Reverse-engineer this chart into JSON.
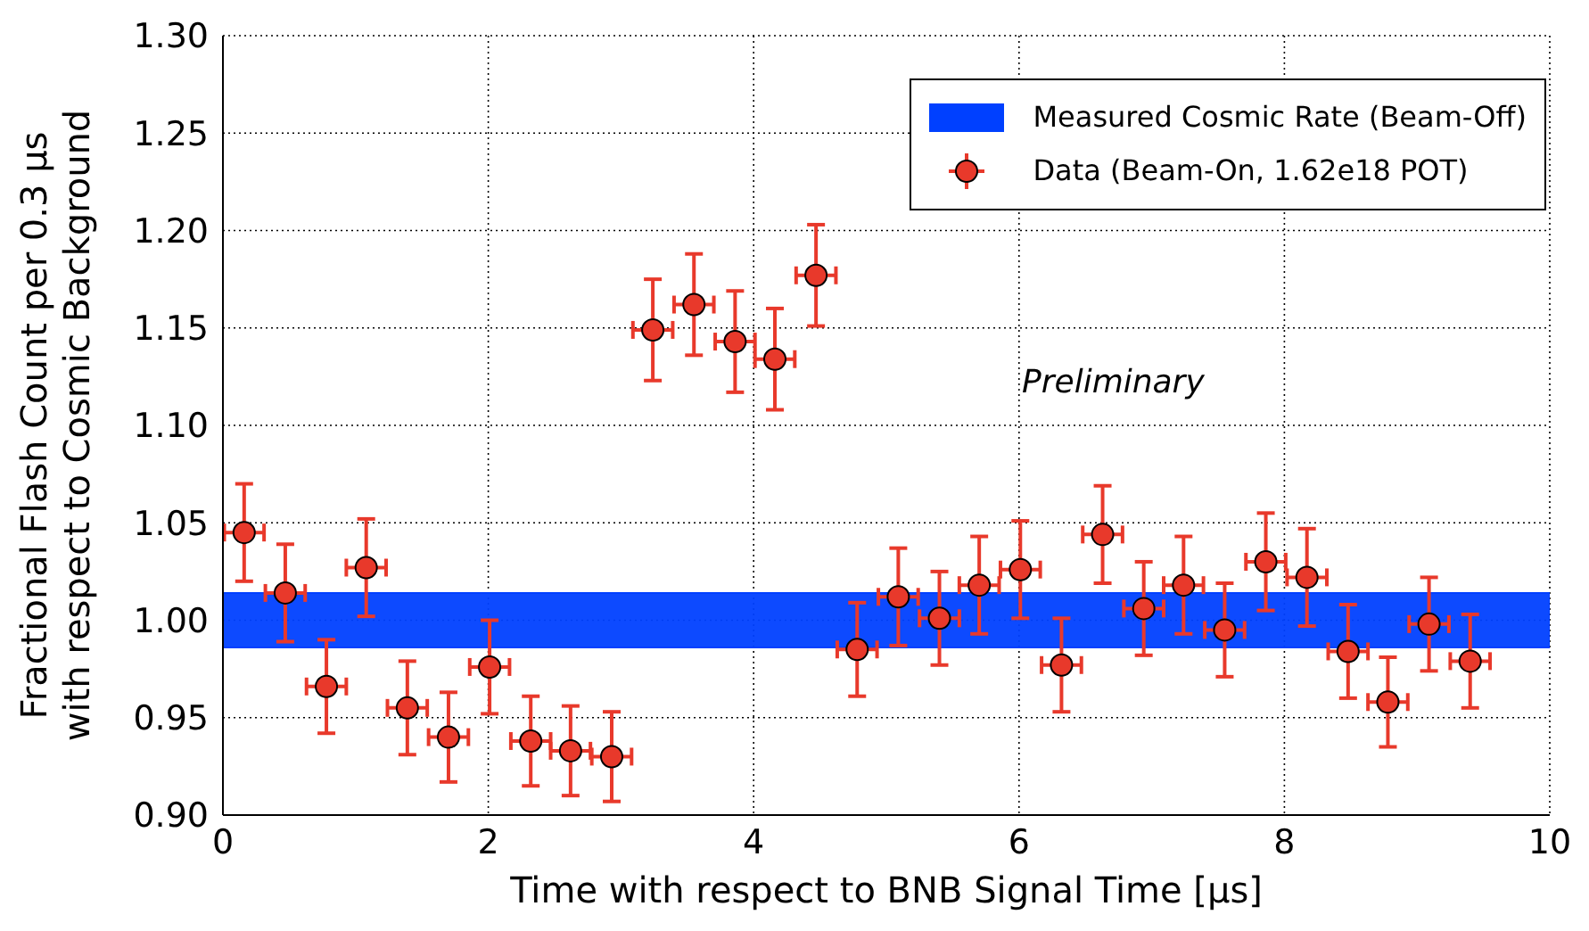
{
  "chart_data": {
    "type": "scatter",
    "xlabel": "Time with respect to BNB Signal Time [μs]",
    "ylabel": "Fractional Flash Count per 0.3 μs\nwith respect to Cosmic Background",
    "xlim": [
      0,
      10
    ],
    "xticks": [
      0,
      2,
      4,
      6,
      8,
      10
    ],
    "ylim": [
      0.9,
      1.3
    ],
    "yticks": [
      {
        "value": 0.9,
        "label": "0.90"
      },
      {
        "value": 0.95,
        "label": "0.95"
      },
      {
        "value": 1.0,
        "label": "1.00"
      },
      {
        "value": 1.05,
        "label": "1.05"
      },
      {
        "value": 1.1,
        "label": "1.10"
      },
      {
        "value": 1.15,
        "label": "1.15"
      },
      {
        "value": 1.2,
        "label": "1.20"
      },
      {
        "value": 1.25,
        "label": "1.25"
      },
      {
        "value": 1.3,
        "label": "1.30"
      }
    ],
    "grid": true,
    "legend": "top right",
    "marker": "circle",
    "bands": [
      {
        "axis": "y",
        "from": 0.986,
        "to": 1.014,
        "label": "Measured Cosmic Rate (Beam-Off)",
        "color": "#0040ff"
      }
    ],
    "annotations": [
      "Preliminary"
    ],
    "x": [
      0.16,
      0.47,
      0.78,
      1.08,
      1.39,
      1.7,
      2.01,
      2.32,
      2.62,
      2.93,
      3.24,
      3.55,
      3.86,
      4.16,
      4.47,
      4.78,
      5.09,
      5.4,
      5.7,
      6.01,
      6.32,
      6.63,
      6.94,
      7.24,
      7.55,
      7.86,
      8.17,
      8.48,
      8.78,
      9.09,
      9.4
    ],
    "series": [
      {
        "name": "Data (Beam-On, 1.62e18 POT)",
        "color": "#e8392b",
        "values": [
          1.045,
          1.014,
          0.966,
          1.027,
          0.955,
          0.94,
          0.976,
          0.938,
          0.933,
          0.93,
          1.149,
          1.162,
          1.143,
          1.134,
          1.177,
          0.985,
          1.012,
          1.001,
          1.018,
          1.026,
          0.977,
          1.044,
          1.006,
          1.018,
          0.995,
          1.03,
          1.022,
          0.984,
          0.958,
          0.998,
          0.979
        ],
        "errors": [
          0.025,
          0.025,
          0.024,
          0.025,
          0.024,
          0.023,
          0.024,
          0.023,
          0.023,
          0.023,
          0.026,
          0.026,
          0.026,
          0.026,
          0.026,
          0.024,
          0.025,
          0.024,
          0.025,
          0.025,
          0.024,
          0.025,
          0.024,
          0.025,
          0.024,
          0.025,
          0.025,
          0.024,
          0.023,
          0.024,
          0.024
        ],
        "xerrors": [
          0.15,
          0.15,
          0.15,
          0.15,
          0.15,
          0.15,
          0.15,
          0.15,
          0.15,
          0.15,
          0.15,
          0.15,
          0.15,
          0.15,
          0.15,
          0.15,
          0.15,
          0.15,
          0.15,
          0.15,
          0.15,
          0.15,
          0.15,
          0.15,
          0.15,
          0.15,
          0.15,
          0.15,
          0.15,
          0.15,
          0.15
        ]
      }
    ]
  }
}
